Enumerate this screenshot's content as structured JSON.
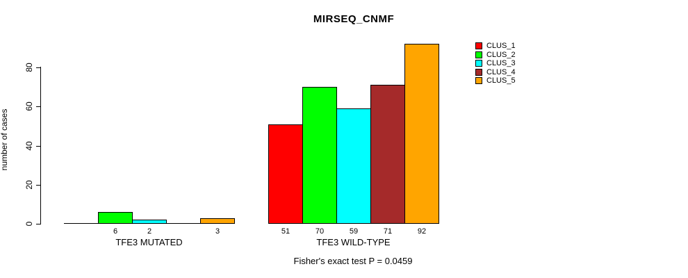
{
  "title": "MIRSEQ_CNMF",
  "chart_data": {
    "type": "bar",
    "title": "MIRSEQ_CNMF",
    "xlabel": "",
    "ylabel": "number of cases",
    "ylim": [
      0,
      92
    ],
    "yticks": [
      0,
      20,
      40,
      60,
      80
    ],
    "grid": false,
    "legend_position": "top-right",
    "series": [
      {
        "name": "CLUS_1",
        "color": "#FF0000"
      },
      {
        "name": "CLUS_2",
        "color": "#00FF00"
      },
      {
        "name": "CLUS_3",
        "color": "#00FFFF"
      },
      {
        "name": "CLUS_4",
        "color": "#A52A2A"
      },
      {
        "name": "CLUS_5",
        "color": "#FFA500"
      }
    ],
    "groups": [
      {
        "label": "TFE3 MUTATED",
        "values": [
          0,
          6,
          2,
          0,
          3
        ],
        "bar_labels": [
          "",
          "6",
          "2",
          "",
          "3"
        ]
      },
      {
        "label": "TFE3 WILD-TYPE",
        "values": [
          51,
          70,
          59,
          71,
          92
        ],
        "bar_labels": [
          "51",
          "70",
          "59",
          "71",
          "92"
        ]
      }
    ],
    "annotation": "Fisher's exact test P = 0.0459"
  }
}
